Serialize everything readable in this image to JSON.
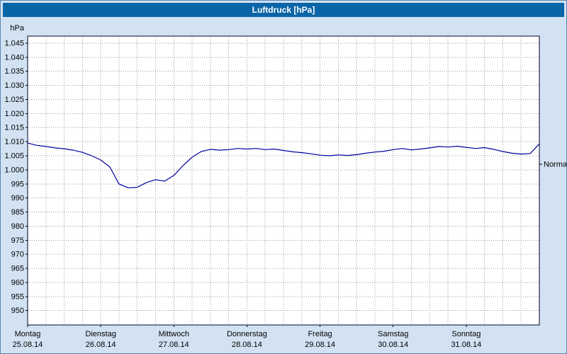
{
  "window": {
    "title": "Luftdruck [hPa]"
  },
  "colors": {
    "titlebar_bg": "#0a64a8",
    "titlebar_text": "#ffffff",
    "background": "#d2e2f2",
    "plot_bg": "#ffffff",
    "plot_border": "#00002a",
    "grid": "#999999",
    "line": "#0000a0",
    "text": "#000000"
  },
  "chart_data": {
    "type": "line",
    "title": "Luftdruck [hPa]",
    "ylabel": "hPa",
    "xlabel": "",
    "grid": true,
    "legend_position": "none",
    "ylim": [
      944.9,
      1047.5
    ],
    "yticks": [
      {
        "value": 1045,
        "label": "1.045"
      },
      {
        "value": 1040,
        "label": "1.040"
      },
      {
        "value": 1035,
        "label": "1.035"
      },
      {
        "value": 1030,
        "label": "1.030"
      },
      {
        "value": 1025,
        "label": "1.025"
      },
      {
        "value": 1020,
        "label": "1.020"
      },
      {
        "value": 1015,
        "label": "1.015"
      },
      {
        "value": 1010,
        "label": "1.010"
      },
      {
        "value": 1005,
        "label": "1.005"
      },
      {
        "value": 1000,
        "label": "1.000"
      },
      {
        "value": 995,
        "label": "995"
      },
      {
        "value": 990,
        "label": "990"
      },
      {
        "value": 985,
        "label": "985"
      },
      {
        "value": 980,
        "label": "980"
      },
      {
        "value": 975,
        "label": "975"
      },
      {
        "value": 970,
        "label": "970"
      },
      {
        "value": 965,
        "label": "965"
      },
      {
        "value": 960,
        "label": "960"
      },
      {
        "value": 955,
        "label": "955"
      },
      {
        "value": 950,
        "label": "950"
      }
    ],
    "x_days": [
      {
        "day": "Montag",
        "date": "25.08.14"
      },
      {
        "day": "Dienstag",
        "date": "26.08.14"
      },
      {
        "day": "Mittwoch",
        "date": "27.08.14"
      },
      {
        "day": "Donnerstag",
        "date": "28.08.14"
      },
      {
        "day": "Freitag",
        "date": "29.08.14"
      },
      {
        "day": "Samstag",
        "date": "30.08.14"
      },
      {
        "day": "Sonntag",
        "date": "31.08.14"
      }
    ],
    "x_total_hours": 168,
    "x_minor_grid_hours": 6,
    "series": [
      {
        "name": "Luftdruck",
        "color": "#0000a0",
        "x_start_hour": 0,
        "x_step_hours": 3,
        "values": [
          1009.5,
          1008.7,
          1008.3,
          1007.8,
          1007.5,
          1007.0,
          1006.2,
          1005.0,
          1003.5,
          1001.0,
          995.0,
          993.6,
          993.8,
          995.5,
          996.5,
          996.0,
          998.0,
          1001.5,
          1004.5,
          1006.5,
          1007.3,
          1007.0,
          1007.2,
          1007.6,
          1007.4,
          1007.6,
          1007.2,
          1007.4,
          1006.9,
          1006.4,
          1006.1,
          1005.7,
          1005.2,
          1005.0,
          1005.3,
          1005.1,
          1005.4,
          1005.9,
          1006.3,
          1006.6,
          1007.2,
          1007.6,
          1007.1,
          1007.4,
          1007.8,
          1008.3,
          1008.1,
          1008.4,
          1008.0,
          1007.6,
          1007.9,
          1007.3,
          1006.5,
          1005.9,
          1005.6,
          1005.8,
          1009.2
        ]
      }
    ],
    "annotations": [
      {
        "label": "Normal",
        "value": 1002
      }
    ]
  }
}
